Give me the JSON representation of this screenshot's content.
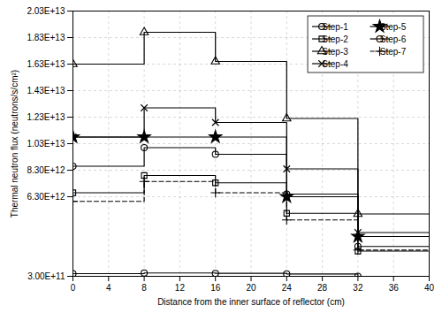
{
  "chart_data": {
    "type": "line",
    "xlabel": "Distance from the inner surface of reflector (cm)",
    "ylabel": "Thermal neutron flux (neutrons/s/cm²)",
    "x": [
      0,
      8,
      8,
      16,
      16,
      24,
      24,
      32,
      32,
      40
    ],
    "xlim": [
      0,
      40
    ],
    "xticks": [
      0,
      4,
      8,
      12,
      16,
      20,
      24,
      28,
      32,
      36,
      40
    ],
    "ylim": [
      300000000000.0,
      20300000000000.0
    ],
    "yticks": [
      {
        "value": 300000000000.0,
        "label": "3.00E+11"
      },
      {
        "value": 6300000000000.0,
        "label": "6.30E+12"
      },
      {
        "value": 8300000000000.0,
        "label": "8.30E+12"
      },
      {
        "value": 10300000000000.0,
        "label": "1.03E+13"
      },
      {
        "value": 12300000000000.0,
        "label": "1.23E+13"
      },
      {
        "value": 14300000000000.0,
        "label": "1.43E+13"
      },
      {
        "value": 16300000000000.0,
        "label": "1.63E+13"
      },
      {
        "value": 18300000000000.0,
        "label": "1.83E+13"
      },
      {
        "value": 20300000000000.0,
        "label": "2.03E+13"
      }
    ],
    "grid": true,
    "legend": "upper right",
    "series": [
      {
        "name": "Step-1",
        "color": "black",
        "marker": "circle",
        "line_style": "solid",
        "values": [
          8600000000000.0,
          8600000000000.0,
          10000000000000.0,
          10000000000000.0,
          9500000000000.0,
          9500000000000.0,
          6500000000000.0,
          6500000000000.0,
          2550000000000.0,
          2550000000000.0
        ]
      },
      {
        "name": "Step-2",
        "color": "black",
        "marker": "square",
        "line_style": "solid",
        "values": [
          6600000000000.0,
          6600000000000.0,
          7900000000000.0,
          7900000000000.0,
          7350000000000.0,
          7350000000000.0,
          5050000000000.0,
          5050000000000.0,
          2200000000000.0,
          2200000000000.0
        ]
      },
      {
        "name": "Step-3",
        "color": "black",
        "marker": "triangle",
        "line_style": "solid",
        "values": [
          16300000000000.0,
          16300000000000.0,
          18700000000000.0,
          18700000000000.0,
          16500000000000.0,
          16500000000000.0,
          12200000000000.0,
          12200000000000.0,
          5000000000000.0,
          5000000000000.0
        ]
      },
      {
        "name": "Step-4",
        "color": "black",
        "marker": "x",
        "line_style": "solid",
        "values": [
          10800000000000.0,
          10800000000000.0,
          13000000000000.0,
          13000000000000.0,
          11900000000000.0,
          11900000000000.0,
          8400000000000.0,
          8400000000000.0,
          3600000000000.0,
          3600000000000.0
        ]
      },
      {
        "name": "Step-5",
        "color": "black",
        "marker": "star",
        "line_style": "solid",
        "values": [
          10800000000000.0,
          10800000000000.0,
          10800000000000.0,
          10800000000000.0,
          10800000000000.0,
          10800000000000.0,
          6300000000000.0,
          6300000000000.0,
          3300000000000.0,
          3300000000000.0
        ]
      },
      {
        "name": "Step-6",
        "color": "black",
        "marker": "circle",
        "line_style": "solid",
        "values": [
          500000000000.0,
          500000000000.0,
          550000000000.0,
          550000000000.0,
          520000000000.0,
          520000000000.0,
          480000000000.0,
          480000000000.0,
          300000000000.0,
          300000000000.0
        ]
      },
      {
        "name": "Step-7",
        "color": "black",
        "marker": "plus",
        "line_style": "dashed",
        "values": [
          5950000000000.0,
          5950000000000.0,
          7450000000000.0,
          7450000000000.0,
          6600000000000.0,
          6600000000000.0,
          4550000000000.0,
          4550000000000.0,
          2280000000000.0,
          2280000000000.0
        ]
      }
    ]
  }
}
